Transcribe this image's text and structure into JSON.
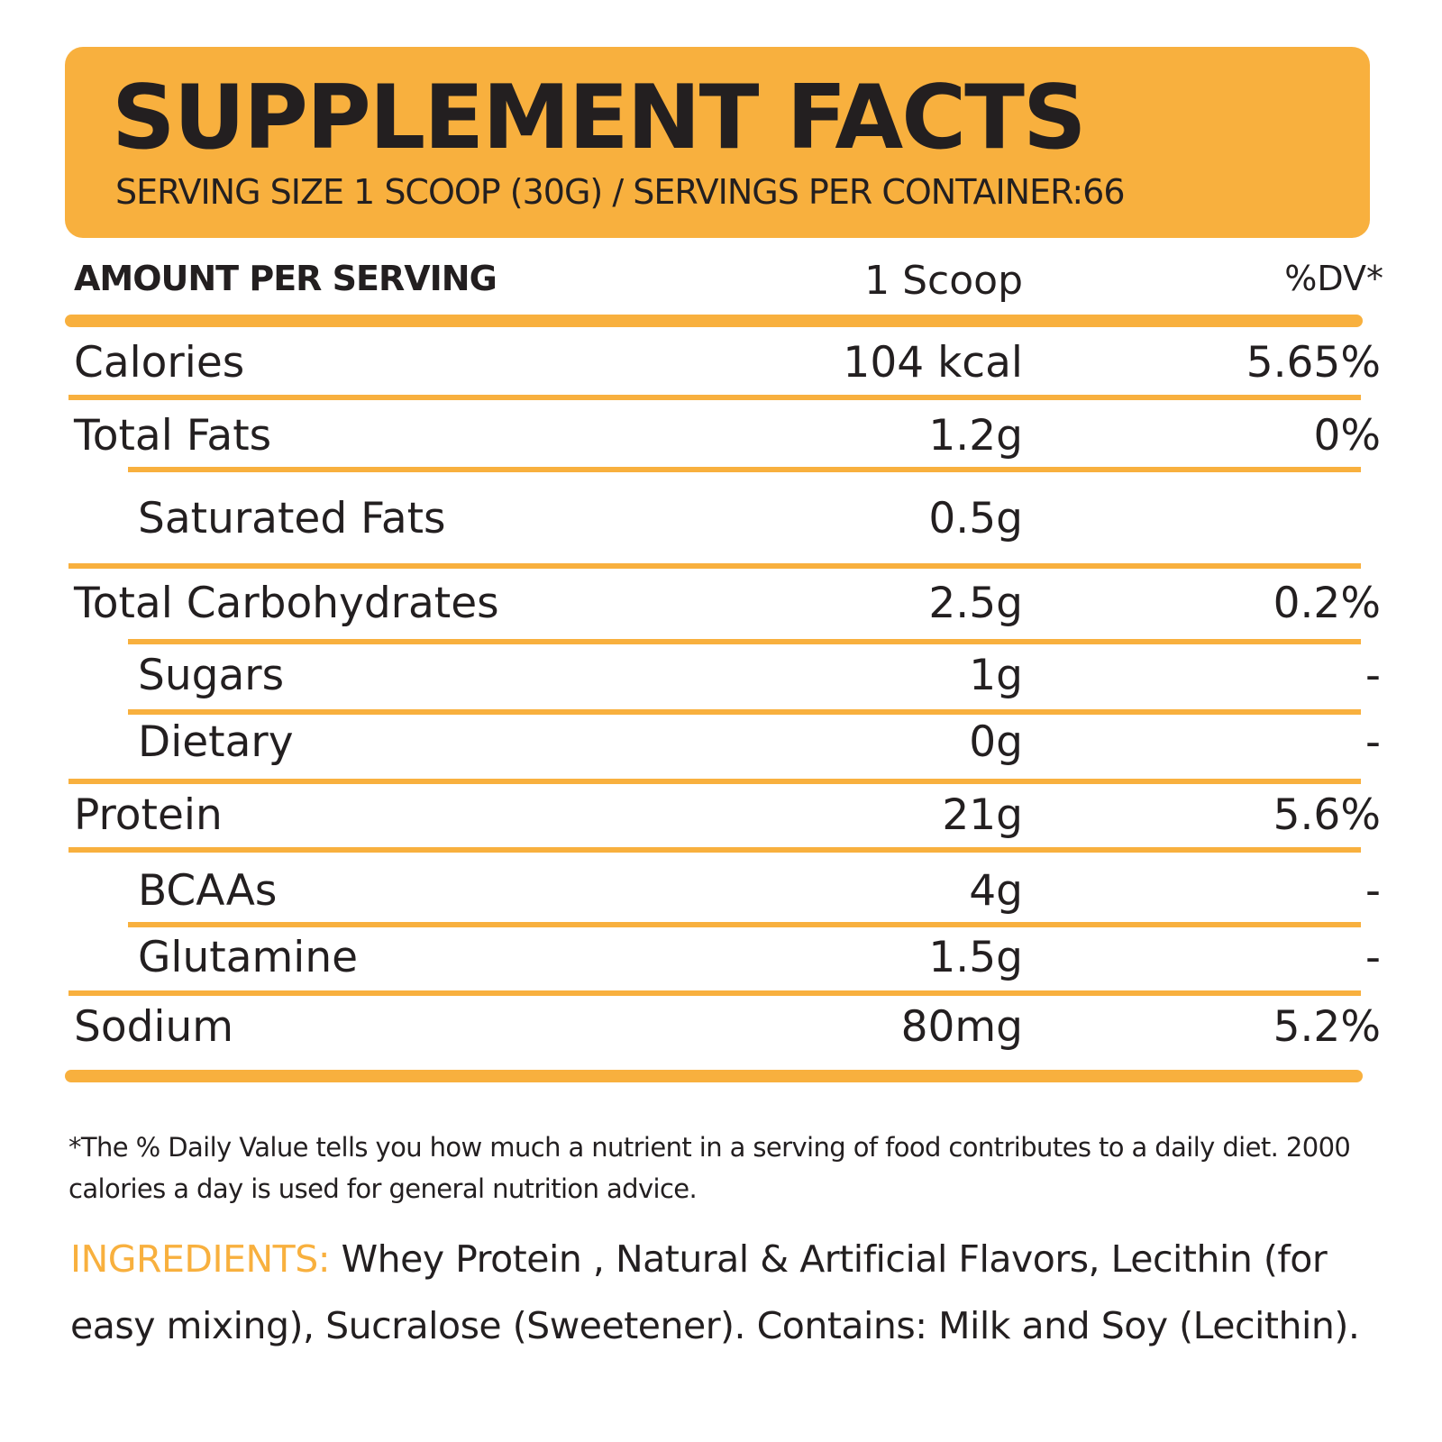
{
  "colors": {
    "accent": "#f8b03e",
    "text": "#231f20",
    "background": "#ffffff"
  },
  "header": {
    "title": "SUPPLEMENT  FACTS",
    "serving_line": "SERVING SIZE 1 SCOOP (30G) / SERVINGS PER CONTAINER:66"
  },
  "columns": {
    "label": "AMOUNT PER SERVING",
    "amount": "1 Scoop",
    "dv": "%DV*"
  },
  "rows": [
    {
      "name": "Calories",
      "amount": "104 kcal",
      "dv": "5.65%"
    },
    {
      "name": "Total Fats",
      "amount": "1.2g",
      "dv": "0%"
    },
    {
      "name": "Saturated Fats",
      "amount": "0.5g",
      "dv": ""
    },
    {
      "name": "Total Carbohydrates",
      "amount": "2.5g",
      "dv": "0.2%"
    },
    {
      "name": "Sugars",
      "amount": "1g",
      "dv": "-"
    },
    {
      "name": "Dietary",
      "amount": "0g",
      "dv": "-"
    },
    {
      "name": "Protein",
      "amount": "21g",
      "dv": "5.6%"
    },
    {
      "name": "BCAAs",
      "amount": "4g",
      "dv": "-"
    },
    {
      "name": "Glutamine",
      "amount": "1.5g",
      "dv": "-"
    },
    {
      "name": "Sodium",
      "amount": "80mg",
      "dv": "5.2%"
    }
  ],
  "footnote": "*The % Daily Value tells you how much a nutrient in a serving of food contributes to a daily diet. 2000 calories a day is used for general nutrition advice.",
  "ingredients": {
    "label": "INGREDIENTS:",
    "text": " Whey Protein , Natural & Artificial Flavors, Lecithin (for easy mixing), Sucralose (Sweetener). Contains: Milk and Soy (Lecithin)."
  }
}
